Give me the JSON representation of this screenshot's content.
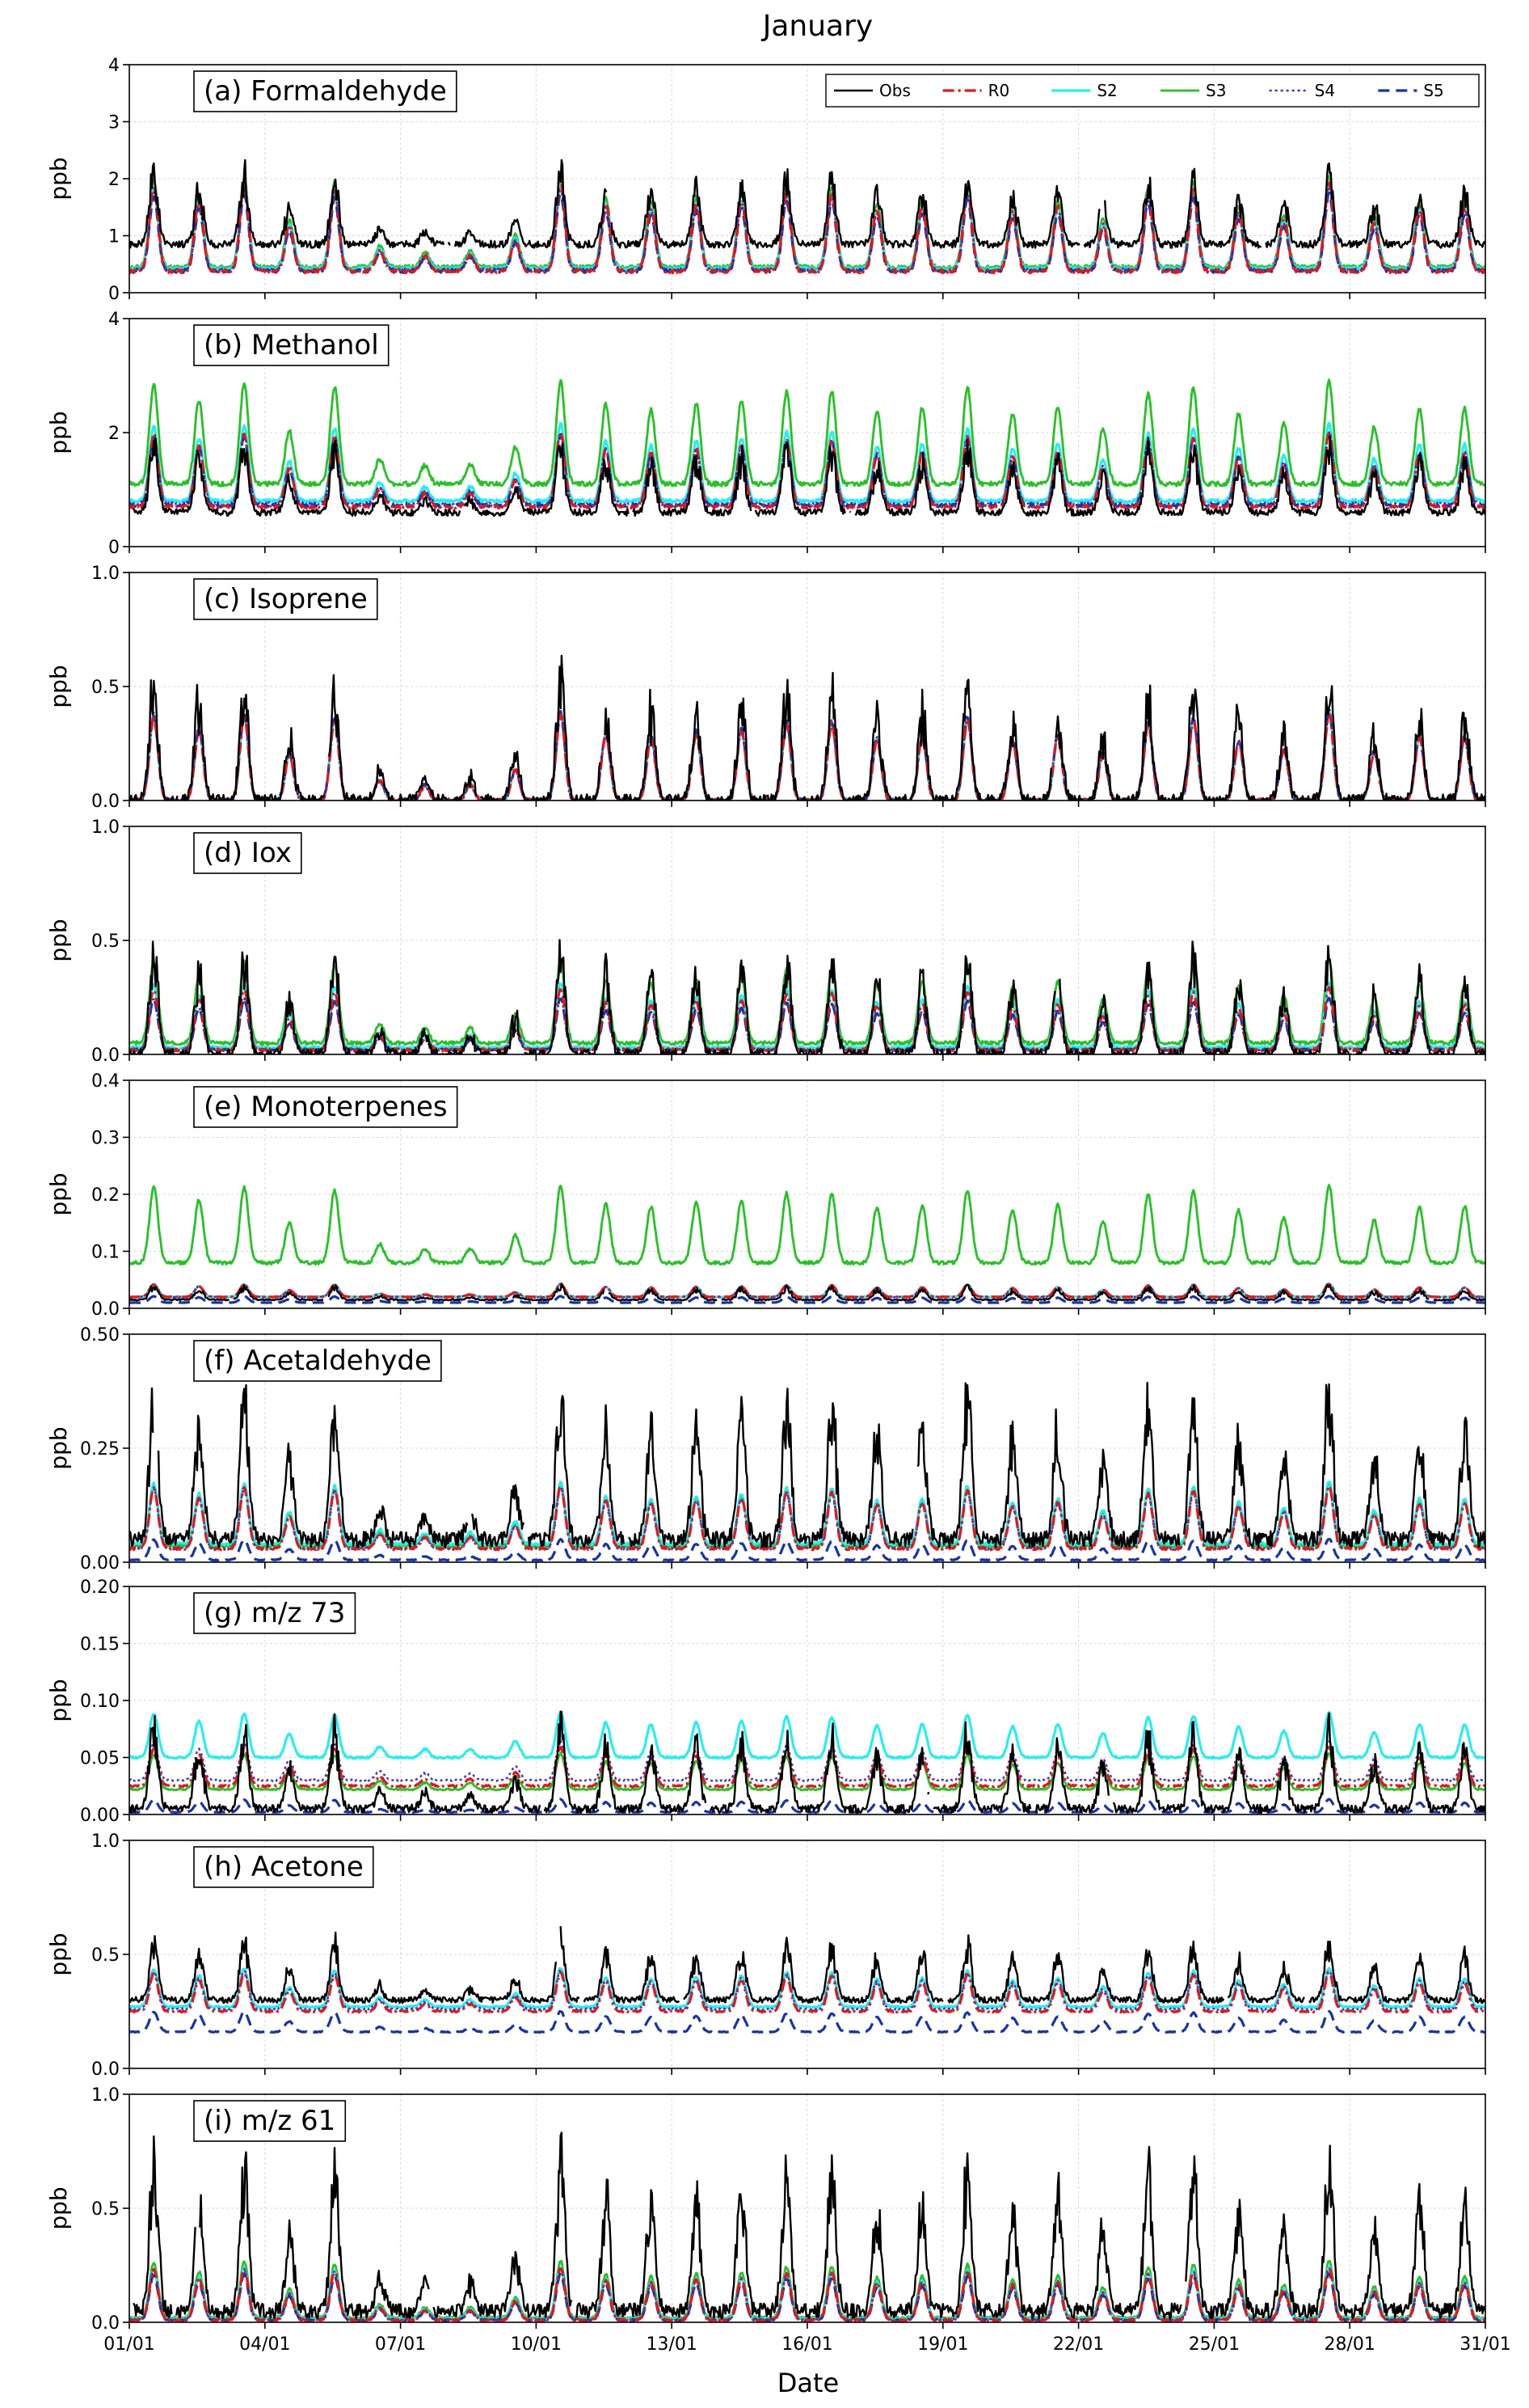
{
  "figure": {
    "title": "January",
    "xlabel": "Date",
    "legend": [
      "Obs",
      "R0",
      "S2",
      "S3",
      "S4",
      "S5"
    ]
  },
  "chart_data": {
    "type": "line",
    "x_tick_labels": [
      "01/01",
      "04/01",
      "07/01",
      "10/01",
      "13/01",
      "16/01",
      "19/01",
      "22/01",
      "25/01",
      "28/01",
      "31/01"
    ],
    "x_range_days": [
      1,
      31
    ],
    "grid": true,
    "legend_placement": "top-right of panel (a)",
    "series_styles": {
      "Obs": {
        "color": "#000000",
        "dash": "solid"
      },
      "R0": {
        "color": "#e8141c",
        "dash": "dashdot"
      },
      "S2": {
        "color": "#19f2f2",
        "dash": "solid"
      },
      "S3": {
        "color": "#22c422",
        "dash": "solid"
      },
      "S4": {
        "color": "#3a2ed6",
        "dash": "dotted"
      },
      "S5": {
        "color": "#1433b0",
        "dash": "dashed"
      }
    },
    "panels": [
      {
        "id": "a",
        "title": "(a) Formaldehyde",
        "ylabel": "ppb",
        "ylim": [
          0,
          4
        ],
        "yticks": [
          "0",
          "1",
          "2",
          "3",
          "4"
        ],
        "series": {
          "Obs": {
            "base": 0.85,
            "amp": 1.05
          },
          "R0": {
            "base": 0.38,
            "amp": 1.35
          },
          "S2": {
            "base": 0.42,
            "amp": 1.3
          },
          "S3": {
            "base": 0.45,
            "amp": 1.4
          },
          "S4": {
            "base": 0.4,
            "amp": 1.25
          },
          "S5": {
            "base": 0.38,
            "amp": 1.2
          }
        }
      },
      {
        "id": "b",
        "title": "(b) Methanol",
        "ylabel": "ppb",
        "ylim": [
          0,
          4
        ],
        "yticks": [
          "0",
          "2",
          "4"
        ],
        "series": {
          "Obs": {
            "base": 0.6,
            "amp": 1.0
          },
          "R0": {
            "base": 0.7,
            "amp": 1.15
          },
          "S2": {
            "base": 0.8,
            "amp": 1.2
          },
          "S3": {
            "base": 1.1,
            "amp": 1.6
          },
          "S4": {
            "base": 0.75,
            "amp": 1.1
          },
          "S5": {
            "base": 0.72,
            "amp": 1.1
          }
        }
      },
      {
        "id": "c",
        "title": "(c) Isoprene",
        "ylabel": "ppb",
        "ylim": [
          0,
          1.0
        ],
        "yticks": [
          "0.0",
          "0.5",
          "1.0"
        ],
        "series": {
          "Obs": {
            "base": 0.0,
            "amp": 0.45
          },
          "R0": {
            "base": 0.0,
            "amp": 0.33
          },
          "S2": {
            "base": 0.0,
            "amp": 0.34
          },
          "S3": {
            "base": 0.0,
            "amp": 0.34
          },
          "S4": {
            "base": 0.0,
            "amp": 0.35
          },
          "S5": {
            "base": 0.0,
            "amp": 0.34
          }
        }
      },
      {
        "id": "d",
        "title": "(d) Iox",
        "ylabel": "ppb",
        "ylim": [
          0,
          1.0
        ],
        "yticks": [
          "0.0",
          "0.5",
          "1.0"
        ],
        "series": {
          "Obs": {
            "base": 0.0,
            "amp": 0.38
          },
          "R0": {
            "base": 0.02,
            "amp": 0.24
          },
          "S2": {
            "base": 0.03,
            "amp": 0.25
          },
          "S3": {
            "base": 0.05,
            "amp": 0.32
          },
          "S4": {
            "base": 0.02,
            "amp": 0.2
          },
          "S5": {
            "base": 0.02,
            "amp": 0.2
          }
        }
      },
      {
        "id": "e",
        "title": "(e) Monoterpenes",
        "ylabel": "ppb",
        "ylim": [
          0,
          0.4
        ],
        "yticks": [
          "0.0",
          "0.1",
          "0.2",
          "0.3",
          "0.4"
        ],
        "series": {
          "Obs": {
            "base": 0.015,
            "amp": 0.02
          },
          "R0": {
            "base": 0.02,
            "amp": 0.02
          },
          "S2": {
            "base": 0.02,
            "amp": 0.02
          },
          "S3": {
            "base": 0.08,
            "amp": 0.12
          },
          "S4": {
            "base": 0.02,
            "amp": 0.02
          },
          "S5": {
            "base": 0.01,
            "amp": 0.01
          }
        }
      },
      {
        "id": "f",
        "title": "(f) Acetaldehyde",
        "ylabel": "ppb",
        "ylim": [
          0,
          0.5
        ],
        "yticks": [
          "0.00",
          "0.25",
          "0.50"
        ],
        "series": {
          "Obs": {
            "base": 0.05,
            "amp": 0.28
          },
          "R0": {
            "base": 0.03,
            "amp": 0.12
          },
          "S2": {
            "base": 0.04,
            "amp": 0.12
          },
          "S3": {
            "base": 0.035,
            "amp": 0.12
          },
          "S4": {
            "base": 0.03,
            "amp": 0.12
          },
          "S5": {
            "base": 0.005,
            "amp": 0.04
          }
        }
      },
      {
        "id": "g",
        "title": "(g) m/z 73",
        "ylabel": "ppb",
        "ylim": [
          0,
          0.2
        ],
        "yticks": [
          "0.00",
          "0.05",
          "0.10",
          "0.15",
          "0.20"
        ],
        "series": {
          "Obs": {
            "base": 0.005,
            "amp": 0.06
          },
          "R0": {
            "base": 0.025,
            "amp": 0.03
          },
          "S2": {
            "base": 0.05,
            "amp": 0.035
          },
          "S3": {
            "base": 0.022,
            "amp": 0.028
          },
          "S4": {
            "base": 0.03,
            "amp": 0.03
          },
          "S5": {
            "base": 0.002,
            "amp": 0.01
          }
        }
      },
      {
        "id": "h",
        "title": "(h) Acetone",
        "ylabel": "ppb",
        "ylim": [
          0,
          1.0
        ],
        "yticks": [
          "0.0",
          "0.5",
          "1.0"
        ],
        "series": {
          "Obs": {
            "base": 0.3,
            "amp": 0.22
          },
          "R0": {
            "base": 0.25,
            "amp": 0.15
          },
          "S2": {
            "base": 0.27,
            "amp": 0.15
          },
          "S3": {
            "base": 0.27,
            "amp": 0.15
          },
          "S4": {
            "base": 0.26,
            "amp": 0.15
          },
          "S5": {
            "base": 0.16,
            "amp": 0.08
          }
        }
      },
      {
        "id": "i",
        "title": "(i) m/z 61",
        "ylabel": "ppb",
        "ylim": [
          0,
          1.0
        ],
        "yticks": [
          "0.0",
          "0.5",
          "1.0"
        ],
        "series": {
          "Obs": {
            "base": 0.05,
            "amp": 0.55
          },
          "R0": {
            "base": 0.01,
            "amp": 0.2
          },
          "S2": {
            "base": 0.015,
            "amp": 0.2
          },
          "S3": {
            "base": 0.02,
            "amp": 0.22
          },
          "S4": {
            "base": 0.01,
            "amp": 0.2
          },
          "S5": {
            "base": 0.01,
            "amp": 0.18
          }
        }
      }
    ]
  }
}
